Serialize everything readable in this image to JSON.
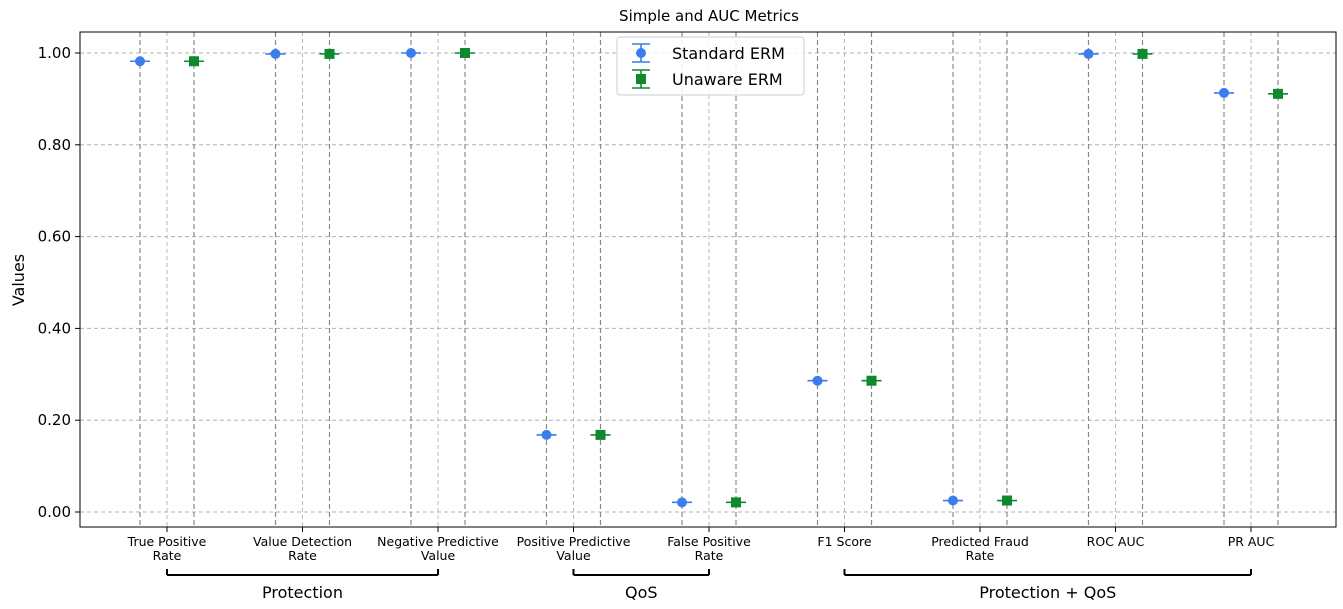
{
  "chart_data": {
    "type": "scatter",
    "title": "Simple and AUC Metrics",
    "ylabel": "Values",
    "xlabel": "",
    "ylim": [
      -0.025,
      1.05
    ],
    "yticks": [
      0.0,
      0.2,
      0.4,
      0.6,
      0.8,
      1.0
    ],
    "ytick_labels": [
      "0.00",
      "0.20",
      "0.40",
      "0.60",
      "0.80",
      "1.00"
    ],
    "grid": true,
    "legend_position": "top-center",
    "categories": [
      [
        "True Positive",
        "Rate"
      ],
      [
        "Value Detection",
        "Rate"
      ],
      [
        "Negative Predictive",
        "Value"
      ],
      [
        "Positive Predictive",
        "Value"
      ],
      [
        "False Positive",
        "Rate"
      ],
      [
        "F1 Score"
      ],
      [
        "Predicted Fraud",
        "Rate"
      ],
      [
        "ROC AUC"
      ],
      [
        "PR AUC"
      ]
    ],
    "series": [
      {
        "name": "Standard ERM",
        "marker": "circle",
        "color": "#3b7ded",
        "values": [
          0.982,
          0.998,
          1.0,
          0.168,
          0.021,
          0.286,
          0.025,
          0.998,
          0.913
        ]
      },
      {
        "name": "Unaware ERM",
        "marker": "square",
        "color": "#0d8a2e",
        "values": [
          0.982,
          0.998,
          1.0,
          0.168,
          0.021,
          0.286,
          0.025,
          0.998,
          0.911
        ]
      }
    ],
    "groups": [
      {
        "label": "Protection",
        "from": 0,
        "to": 2
      },
      {
        "label": "QoS",
        "from": 3,
        "to": 4
      },
      {
        "label": "Protection + QoS",
        "from": 5,
        "to": 8
      }
    ]
  }
}
